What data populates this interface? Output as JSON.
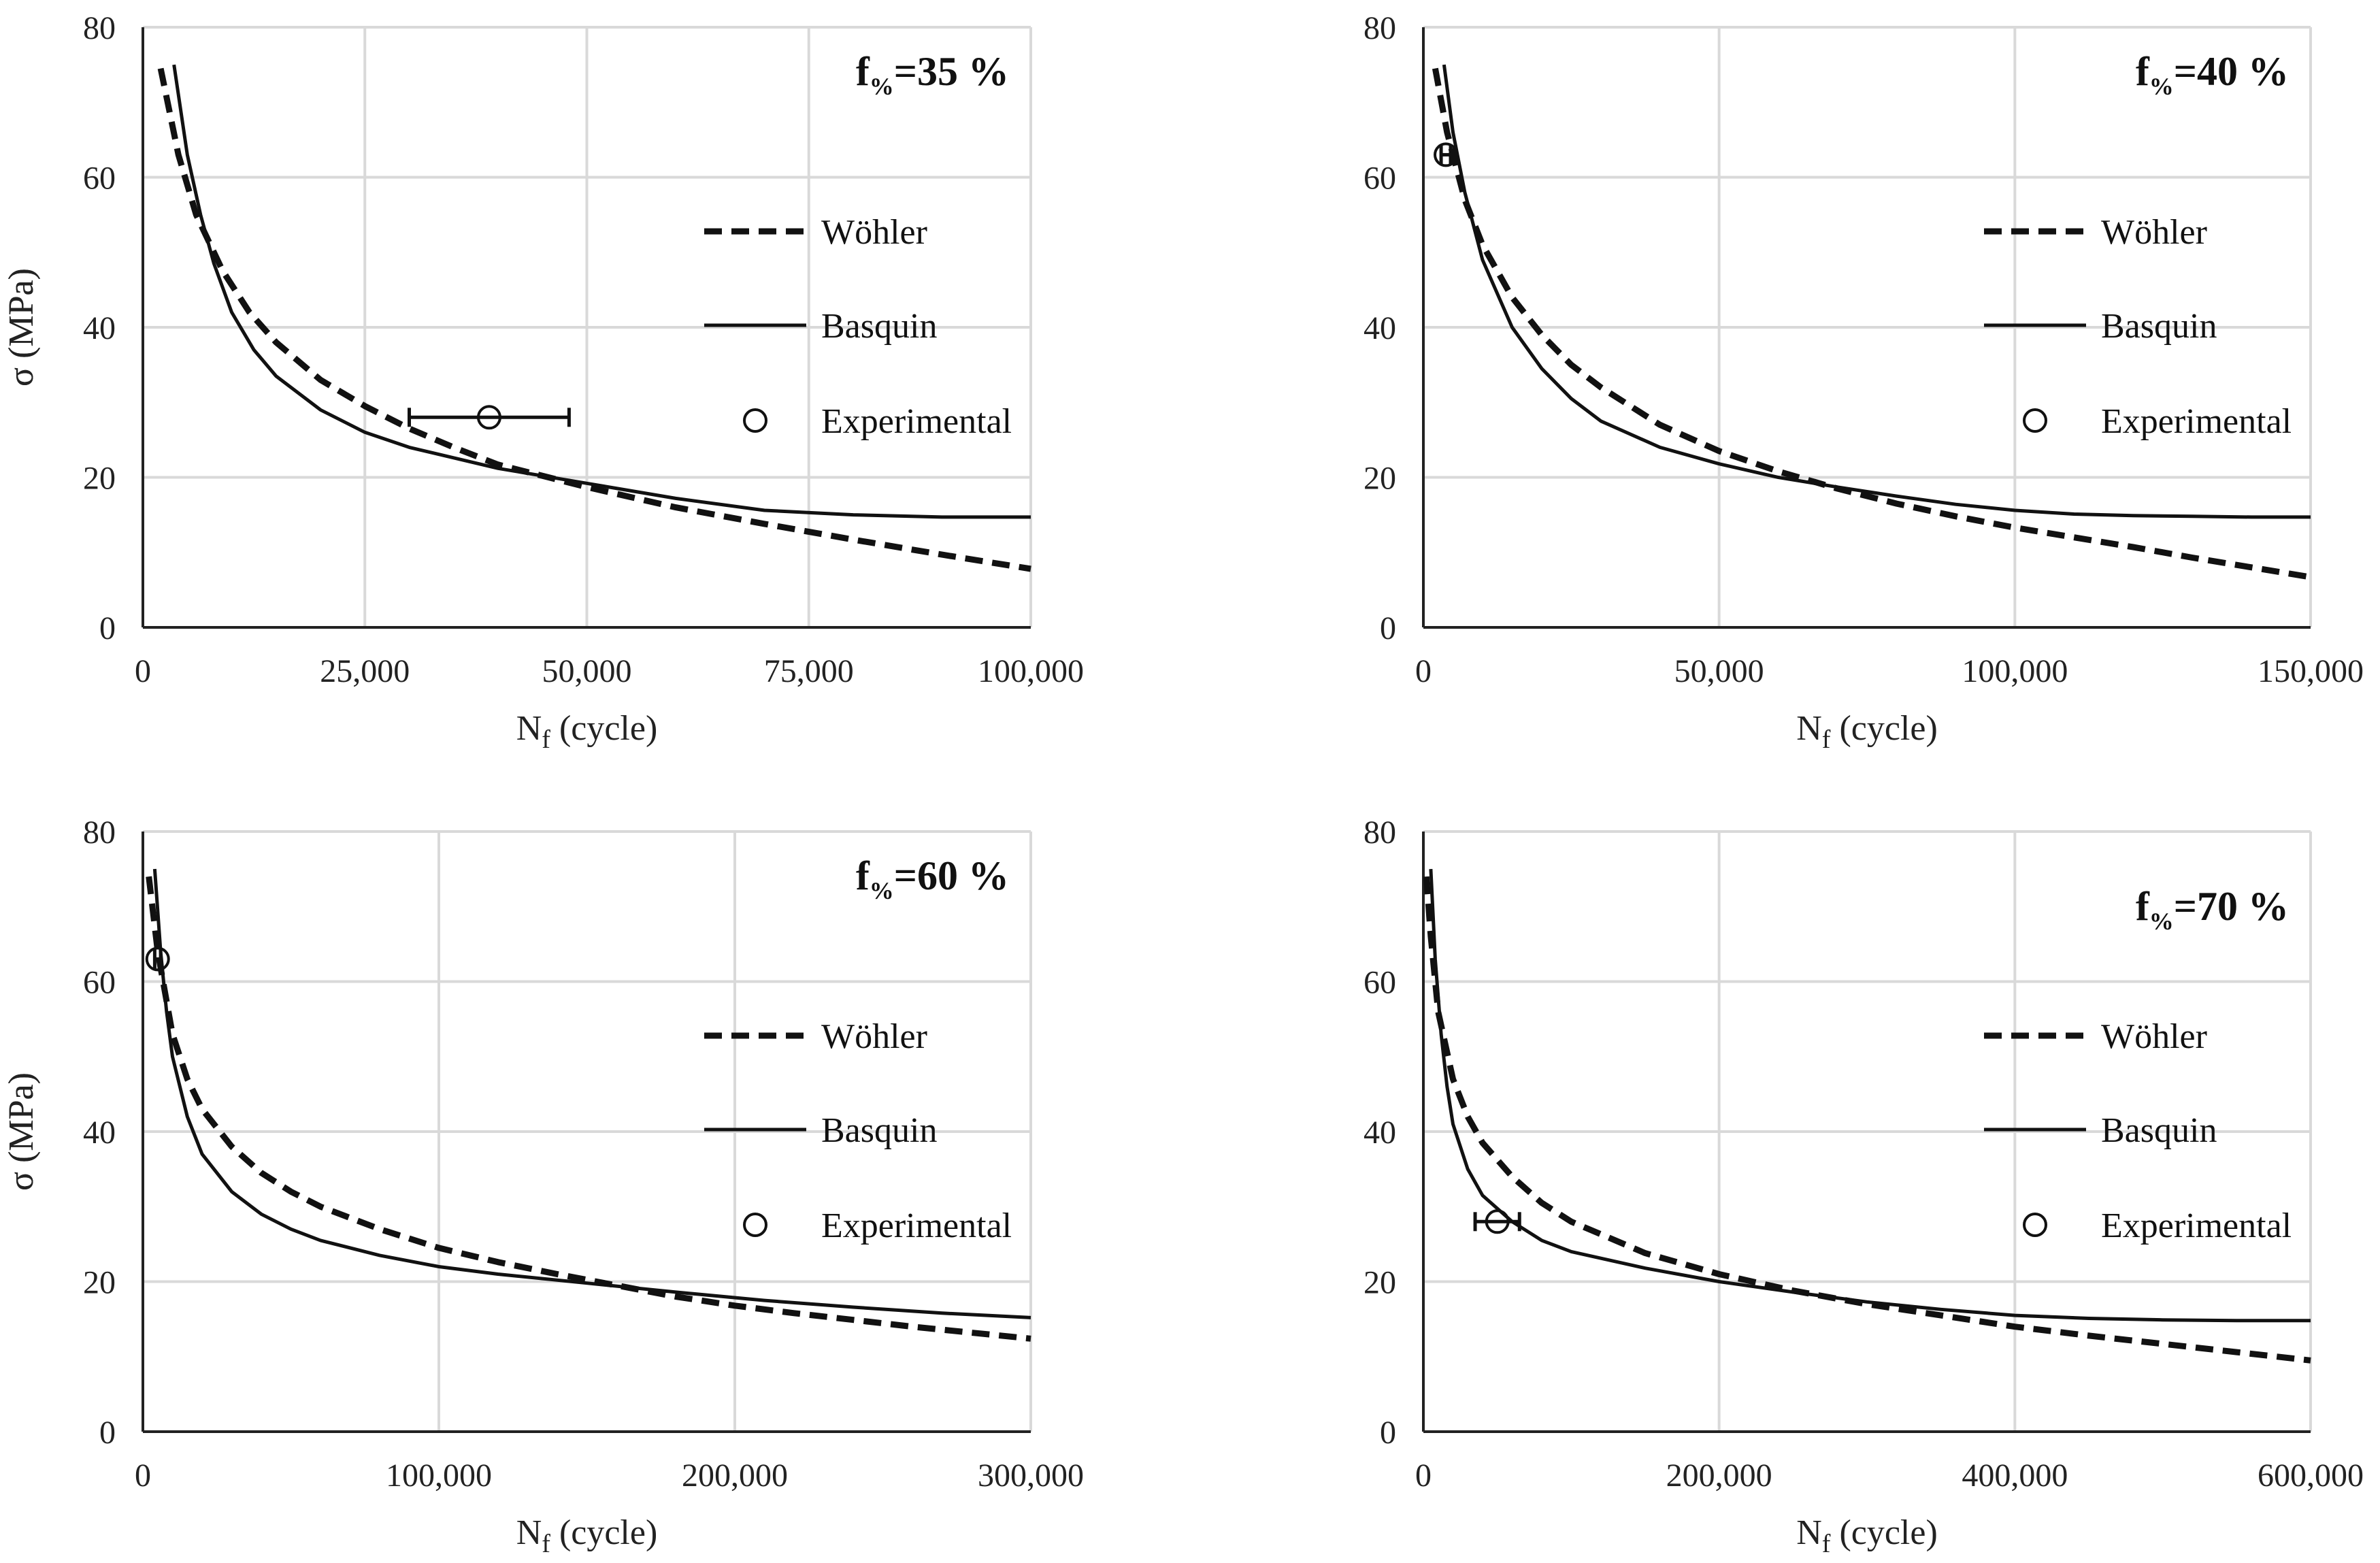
{
  "chart_data": [
    {
      "type": "line",
      "title": {
        "prefix": "f",
        "sub": "%",
        "suffix": "=35 %"
      },
      "xlabel": {
        "main": "N",
        "sub": "f",
        "rest": " (cycle)"
      },
      "ylabel": "σ (MPa)",
      "xlim": [
        0,
        100000
      ],
      "ylim": [
        0,
        80
      ],
      "xticks": [
        0,
        25000,
        50000,
        75000,
        100000
      ],
      "xtick_labels": [
        "0",
        "25,000",
        "50,000",
        "75,000",
        "100,000"
      ],
      "yticks": [
        0,
        20,
        40,
        60,
        80
      ],
      "ytick_labels": [
        "0",
        "20",
        "40",
        "60",
        "80"
      ],
      "legend": [
        "Wöhler",
        "Basquin",
        "Experimental"
      ],
      "series": [
        {
          "name": "Wöhler",
          "style": "dashed",
          "x": [
            2000,
            4000,
            6000,
            9000,
            12000,
            15000,
            20000,
            25000,
            30000,
            35000,
            40000,
            50000,
            60000,
            70000,
            80000,
            90000,
            100000
          ],
          "y": [
            74.5,
            63,
            55,
            47.5,
            42,
            38,
            33,
            29.5,
            26.5,
            24,
            21.7,
            18.7,
            16,
            13.8,
            11.7,
            9.7,
            7.8
          ]
        },
        {
          "name": "Basquin",
          "style": "solid",
          "x": [
            3500,
            5000,
            6500,
            8000,
            10000,
            12500,
            15000,
            20000,
            25000,
            30000,
            40000,
            50000,
            60000,
            70000,
            80000,
            90000,
            100000
          ],
          "y": [
            75,
            63,
            55,
            48.5,
            42,
            37,
            33.5,
            29,
            26,
            24,
            21.2,
            19.2,
            17.2,
            15.6,
            15,
            14.7,
            14.7
          ]
        },
        {
          "name": "Experimental",
          "style": "marker",
          "x": [
            39000
          ],
          "y": [
            28
          ],
          "xerr_low": [
            30000
          ],
          "xerr_high": [
            48000
          ]
        }
      ]
    },
    {
      "type": "line",
      "title": {
        "prefix": "f",
        "sub": "%",
        "suffix": "=40 %"
      },
      "xlabel": {
        "main": "N",
        "sub": "f",
        "rest": " (cycle)"
      },
      "ylabel": "σ (MPa)",
      "xlim": [
        0,
        150000
      ],
      "ylim": [
        0,
        80
      ],
      "xticks": [
        0,
        50000,
        100000,
        150000
      ],
      "xtick_labels": [
        "0",
        "50,000",
        "100,000",
        "150,000"
      ],
      "yticks": [
        0,
        20,
        40,
        60,
        80
      ],
      "ytick_labels": [
        "0",
        "20",
        "40",
        "60",
        "80"
      ],
      "legend": [
        "Wöhler",
        "Basquin",
        "Experimental"
      ],
      "series": [
        {
          "name": "Wöhler",
          "style": "dashed",
          "x": [
            2000,
            4000,
            7000,
            10000,
            15000,
            20000,
            25000,
            30000,
            40000,
            50000,
            60000,
            70000,
            80000,
            90000,
            100000,
            110000,
            120000,
            130000,
            140000,
            150000
          ],
          "y": [
            74.5,
            66,
            57,
            51,
            44,
            39,
            35,
            32,
            27,
            23.5,
            20.8,
            18.5,
            16.5,
            14.8,
            13.3,
            12,
            10.7,
            9.3,
            8,
            6.7
          ]
        },
        {
          "name": "Basquin",
          "style": "solid",
          "x": [
            3500,
            5000,
            7000,
            10000,
            15000,
            20000,
            25000,
            30000,
            40000,
            50000,
            60000,
            70000,
            80000,
            90000,
            100000,
            110000,
            120000,
            130000,
            140000,
            150000
          ],
          "y": [
            75,
            66,
            58,
            49,
            40,
            34.5,
            30.5,
            27.5,
            24,
            21.8,
            20,
            18.7,
            17.5,
            16.4,
            15.6,
            15.1,
            14.9,
            14.8,
            14.7,
            14.7
          ]
        },
        {
          "name": "Experimental",
          "style": "marker",
          "x": [
            3800
          ],
          "y": [
            63
          ],
          "xerr_low": [
            3000
          ],
          "xerr_high": [
            4600
          ]
        }
      ]
    },
    {
      "type": "line",
      "title": {
        "prefix": "f",
        "sub": "%",
        "suffix": "=60 %"
      },
      "xlabel": {
        "main": "N",
        "sub": "f",
        "rest": " (cycle)"
      },
      "ylabel": "σ (MPa)",
      "xlim": [
        0,
        300000
      ],
      "ylim": [
        0,
        80
      ],
      "xticks": [
        0,
        100000,
        200000,
        300000
      ],
      "xtick_labels": [
        "0",
        "100,000",
        "200,000",
        "300,000"
      ],
      "yticks": [
        0,
        20,
        40,
        60,
        80
      ],
      "ytick_labels": [
        "0",
        "20",
        "40",
        "60",
        "80"
      ],
      "legend": [
        "Wöhler",
        "Basquin",
        "Experimental"
      ],
      "series": [
        {
          "name": "Wöhler",
          "style": "dashed",
          "x": [
            2000,
            5000,
            10000,
            15000,
            20000,
            30000,
            40000,
            50000,
            60000,
            80000,
            100000,
            120000,
            140000,
            160000,
            180000,
            200000,
            220000,
            240000,
            260000,
            280000,
            300000
          ],
          "y": [
            74,
            64,
            53,
            47,
            43,
            38,
            34.5,
            32,
            30,
            27,
            24.5,
            22.6,
            21,
            19.5,
            18,
            16.8,
            15.8,
            14.9,
            14,
            13.2,
            12.4
          ]
        },
        {
          "name": "Basquin",
          "style": "solid",
          "x": [
            4000,
            6000,
            8000,
            10000,
            15000,
            20000,
            30000,
            40000,
            50000,
            60000,
            80000,
            100000,
            120000,
            150000,
            180000,
            210000,
            240000,
            270000,
            300000
          ],
          "y": [
            75,
            64,
            56,
            50,
            42,
            37,
            32,
            29,
            27,
            25.5,
            23.5,
            22,
            21,
            19.8,
            18.6,
            17.5,
            16.6,
            15.8,
            15.2
          ]
        },
        {
          "name": "Experimental",
          "style": "marker",
          "x": [
            5000
          ],
          "y": [
            63
          ],
          "xerr_low": [
            4000
          ],
          "xerr_high": [
            6000
          ]
        }
      ]
    },
    {
      "type": "line",
      "title": {
        "prefix": "f",
        "sub": "%",
        "suffix": "=70 %"
      },
      "xlabel": {
        "main": "N",
        "sub": "f",
        "rest": " (cycle)"
      },
      "ylabel": "σ (MPa)",
      "xlim": [
        0,
        600000
      ],
      "ylim": [
        0,
        80
      ],
      "xticks": [
        0,
        200000,
        400000,
        600000
      ],
      "xtick_labels": [
        "0",
        "200,000",
        "400,000",
        "600,000"
      ],
      "yticks": [
        0,
        20,
        40,
        60,
        80
      ],
      "ytick_labels": [
        "0",
        "20",
        "40",
        "60",
        "80"
      ],
      "legend": [
        "Wöhler",
        "Basquin",
        "Experimental"
      ],
      "series": [
        {
          "name": "Wöhler",
          "style": "dashed",
          "x": [
            2000,
            5000,
            10000,
            20000,
            30000,
            40000,
            60000,
            80000,
            100000,
            150000,
            200000,
            250000,
            300000,
            350000,
            400000,
            450000,
            500000,
            550000,
            600000
          ],
          "y": [
            74,
            66,
            56,
            47,
            42,
            38.5,
            34,
            30.5,
            28,
            23.8,
            21,
            18.8,
            17,
            15.5,
            14,
            12.8,
            11.7,
            10.6,
            9.5
          ]
        },
        {
          "name": "Basquin",
          "style": "solid",
          "x": [
            5000,
            8000,
            12000,
            16000,
            20000,
            30000,
            40000,
            60000,
            80000,
            100000,
            150000,
            200000,
            250000,
            300000,
            350000,
            400000,
            450000,
            500000,
            550000,
            600000
          ],
          "y": [
            75,
            63,
            53,
            46,
            41,
            35,
            31.5,
            28,
            25.5,
            24,
            21.8,
            20,
            18.6,
            17.3,
            16.3,
            15.5,
            15.1,
            14.9,
            14.8,
            14.8
          ]
        },
        {
          "name": "Experimental",
          "style": "marker",
          "x": [
            50000
          ],
          "y": [
            28
          ],
          "xerr_low": [
            35000
          ],
          "xerr_high": [
            65000
          ]
        }
      ]
    }
  ]
}
